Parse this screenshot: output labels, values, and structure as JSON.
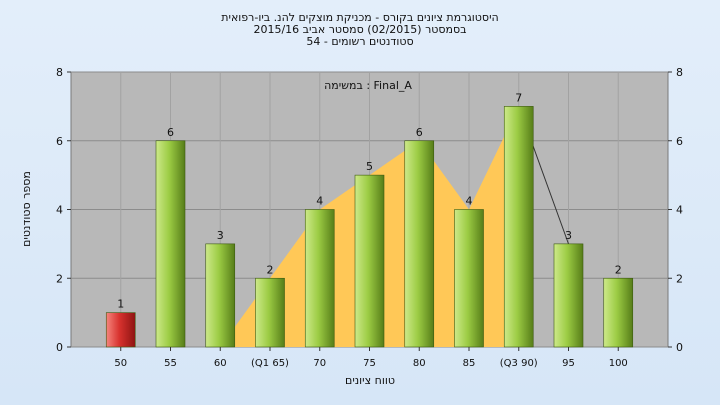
{
  "chart_data": {
    "type": "bar",
    "title_lines": [
      "היסטוגרמת ציונים בקורס - מכניקת מוצקים להנ. ביו-רפואית",
      "בסמסטר  (02/2015)  סמסטר אביב 2015/16",
      "סטודנטים רשומים - 54"
    ],
    "legend_text": "במשימה : Final_A",
    "xlabel": "טווח ציונים",
    "ylabel": "מספר סטודנטים",
    "categories": [
      "50",
      "55",
      "60",
      "(Q1 65)",
      "70",
      "75",
      "80",
      "85",
      "(Q3 90)",
      "95",
      "100"
    ],
    "values": [
      1,
      6,
      3,
      2,
      4,
      5,
      6,
      4,
      7,
      3,
      2
    ],
    "data_labels": [
      "1",
      "6",
      "3",
      "2",
      "4",
      "5",
      "6",
      "4",
      "7",
      "3",
      "2"
    ],
    "yticks": [
      "0",
      "2",
      "4",
      "6",
      "8"
    ],
    "ylim": [
      0,
      8
    ],
    "highlight_index": 0,
    "shaded_range": {
      "from_index": 3,
      "to_index": 8
    },
    "grid": true,
    "colors": {
      "bar": "#9ccc44",
      "bar_highlight": "#d8322e",
      "band": "#ffc857",
      "plot_bg": "#b8b8b8"
    }
  }
}
